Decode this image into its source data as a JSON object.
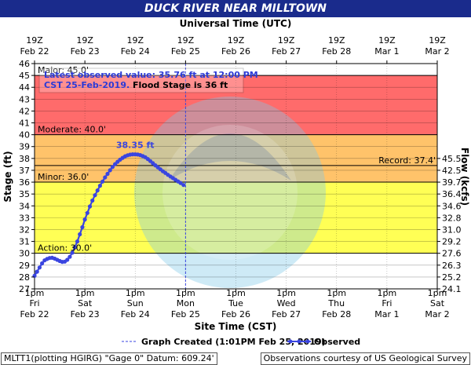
{
  "title": "DUCK RIVER NEAR MILLTOWN",
  "top_axis_title": "Universal Time (UTC)",
  "bottom_axis_title": "Site Time (CST)",
  "y_left_title": "Stage (ft)",
  "y_right_title": "Flow (kcfs)",
  "top_ticks": [
    {
      "hour": "19Z",
      "date": "Feb 22"
    },
    {
      "hour": "19Z",
      "date": "Feb 23"
    },
    {
      "hour": "19Z",
      "date": "Feb 24"
    },
    {
      "hour": "19Z",
      "date": "Feb 25"
    },
    {
      "hour": "19Z",
      "date": "Feb 26"
    },
    {
      "hour": "19Z",
      "date": "Feb 27"
    },
    {
      "hour": "19Z",
      "date": "Feb 28"
    },
    {
      "hour": "19Z",
      "date": "Mar 1"
    },
    {
      "hour": "19Z",
      "date": "Mar 2"
    }
  ],
  "bottom_ticks": [
    {
      "time": "1pm",
      "day": "Fri",
      "date": "Feb 22"
    },
    {
      "time": "1pm",
      "day": "Sat",
      "date": "Feb 23"
    },
    {
      "time": "1pm",
      "day": "Sun",
      "date": "Feb 24"
    },
    {
      "time": "1pm",
      "day": "Mon",
      "date": "Feb 25"
    },
    {
      "time": "1pm",
      "day": "Tue",
      "date": "Feb 26"
    },
    {
      "time": "1pm",
      "day": "Wed",
      "date": "Feb 27"
    },
    {
      "time": "1pm",
      "day": "Thu",
      "date": "Feb 28"
    },
    {
      "time": "1pm",
      "day": "Fri",
      "date": "Mar 1"
    },
    {
      "time": "1pm",
      "day": "Sat",
      "date": "Mar 2"
    }
  ],
  "annotation": {
    "line1": "Latest observed value: 35.76 ft at 12:00 PM",
    "line2a": "CST 25-Feb-2019.",
    "line2b": " Flood Stage is 36 ft"
  },
  "legend": {
    "created": "Graph Created (1:01PM Feb 25, 2019)",
    "observed": "Observed"
  },
  "footer": {
    "left": "MLTT1(plotting HGIRG) \"Gage 0\" Datum: 609.24'",
    "right": "Observations courtesy of US Geological Survey"
  },
  "colors": {
    "title_bar": "#1a2b8c",
    "major": "#e58de8",
    "moderate": "#ff6b6b",
    "minor": "#ffc36a",
    "action": "#ffff55",
    "normal": "#ffffff",
    "observed": "#3a45e0",
    "annotation_text": "#2b3ad6"
  },
  "chart_data": {
    "type": "line",
    "y_left_range": [
      27,
      46
    ],
    "y_left_ticks": [
      27,
      28,
      29,
      30,
      31,
      32,
      33,
      34,
      35,
      36,
      37,
      38,
      39,
      40,
      41,
      42,
      43,
      44,
      45,
      46
    ],
    "y_right_ticks": [
      {
        "stage": 27.0,
        "label": "24.1"
      },
      {
        "stage": 28.0,
        "label": "25.2"
      },
      {
        "stage": 29.0,
        "label": "26.3"
      },
      {
        "stage": 30.0,
        "label": "27.6"
      },
      {
        "stage": 31.0,
        "label": "29.2"
      },
      {
        "stage": 32.0,
        "label": "31.0"
      },
      {
        "stage": 33.0,
        "label": "32.8"
      },
      {
        "stage": 34.0,
        "label": "34.6"
      },
      {
        "stage": 35.0,
        "label": "36.4"
      },
      {
        "stage": 36.0,
        "label": "39.7"
      },
      {
        "stage": 37.0,
        "label": "42.5"
      },
      {
        "stage": 38.0,
        "label": "45.5"
      }
    ],
    "x_range_days": [
      0,
      8
    ],
    "x_start": "2019-02-22 13:00 CST",
    "flood_categories": [
      {
        "name": "Major",
        "label": "Major: 45.0'",
        "stage": 45.0,
        "color_key": "major"
      },
      {
        "name": "Moderate",
        "label": "Moderate: 40.0'",
        "stage": 40.0,
        "color_key": "moderate"
      },
      {
        "name": "Minor",
        "label": "Minor: 36.0'",
        "stage": 36.0,
        "color_key": "minor"
      },
      {
        "name": "Action",
        "label": "Action: 30.0'",
        "stage": 30.0,
        "color_key": "action"
      }
    ],
    "record": {
      "label": "Record: 37.4'",
      "stage": 37.4
    },
    "crest": {
      "label": "38.35 ft",
      "x": 2.03,
      "y": 38.35
    },
    "graph_created_x": 3.0,
    "series": [
      {
        "name": "Observed",
        "points": [
          [
            0.0,
            28.1
          ],
          [
            0.05,
            28.45
          ],
          [
            0.1,
            28.8
          ],
          [
            0.15,
            29.15
          ],
          [
            0.2,
            29.4
          ],
          [
            0.25,
            29.52
          ],
          [
            0.3,
            29.6
          ],
          [
            0.35,
            29.62
          ],
          [
            0.4,
            29.55
          ],
          [
            0.45,
            29.45
          ],
          [
            0.5,
            29.35
          ],
          [
            0.55,
            29.28
          ],
          [
            0.6,
            29.3
          ],
          [
            0.65,
            29.45
          ],
          [
            0.7,
            29.7
          ],
          [
            0.75,
            30.05
          ],
          [
            0.8,
            30.5
          ],
          [
            0.85,
            31.0
          ],
          [
            0.9,
            31.6
          ],
          [
            0.95,
            32.2
          ],
          [
            1.0,
            32.85
          ],
          [
            1.05,
            33.4
          ],
          [
            1.1,
            33.95
          ],
          [
            1.15,
            34.45
          ],
          [
            1.2,
            34.9
          ],
          [
            1.25,
            35.3
          ],
          [
            1.3,
            35.7
          ],
          [
            1.35,
            36.05
          ],
          [
            1.4,
            36.4
          ],
          [
            1.45,
            36.7
          ],
          [
            1.5,
            37.0
          ],
          [
            1.55,
            37.28
          ],
          [
            1.6,
            37.52
          ],
          [
            1.65,
            37.72
          ],
          [
            1.7,
            37.9
          ],
          [
            1.75,
            38.05
          ],
          [
            1.8,
            38.18
          ],
          [
            1.85,
            38.27
          ],
          [
            1.9,
            38.32
          ],
          [
            1.95,
            38.35
          ],
          [
            2.0,
            38.35
          ],
          [
            2.05,
            38.33
          ],
          [
            2.1,
            38.28
          ],
          [
            2.15,
            38.2
          ],
          [
            2.2,
            38.1
          ],
          [
            2.25,
            37.95
          ],
          [
            2.3,
            37.78
          ],
          [
            2.35,
            37.6
          ],
          [
            2.4,
            37.42
          ],
          [
            2.45,
            37.25
          ],
          [
            2.5,
            37.08
          ],
          [
            2.55,
            36.92
          ],
          [
            2.6,
            36.78
          ],
          [
            2.65,
            36.62
          ],
          [
            2.7,
            36.48
          ],
          [
            2.75,
            36.34
          ],
          [
            2.8,
            36.2
          ],
          [
            2.85,
            36.06
          ],
          [
            2.9,
            35.93
          ],
          [
            2.96,
            35.76
          ]
        ]
      }
    ]
  }
}
